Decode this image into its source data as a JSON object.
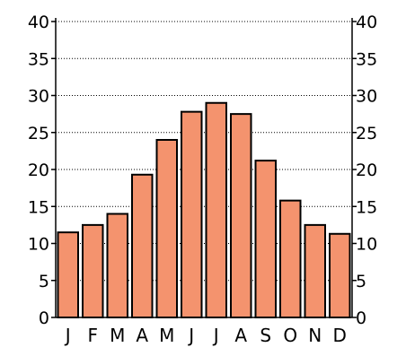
{
  "chart_data": {
    "type": "bar",
    "categories": [
      "J",
      "F",
      "M",
      "A",
      "M",
      "J",
      "J",
      "A",
      "S",
      "O",
      "N",
      "D"
    ],
    "values": [
      11.5,
      12.5,
      14,
      19.3,
      24,
      27.8,
      29,
      27.5,
      21.2,
      15.8,
      12.5,
      11.3
    ],
    "title": "",
    "xlabel": "",
    "ylabel": "",
    "ylim": [
      0,
      40
    ],
    "yticks": [
      0,
      5,
      10,
      15,
      20,
      25,
      30,
      35,
      40
    ],
    "grid": true,
    "bar_color": "#f4936e"
  }
}
